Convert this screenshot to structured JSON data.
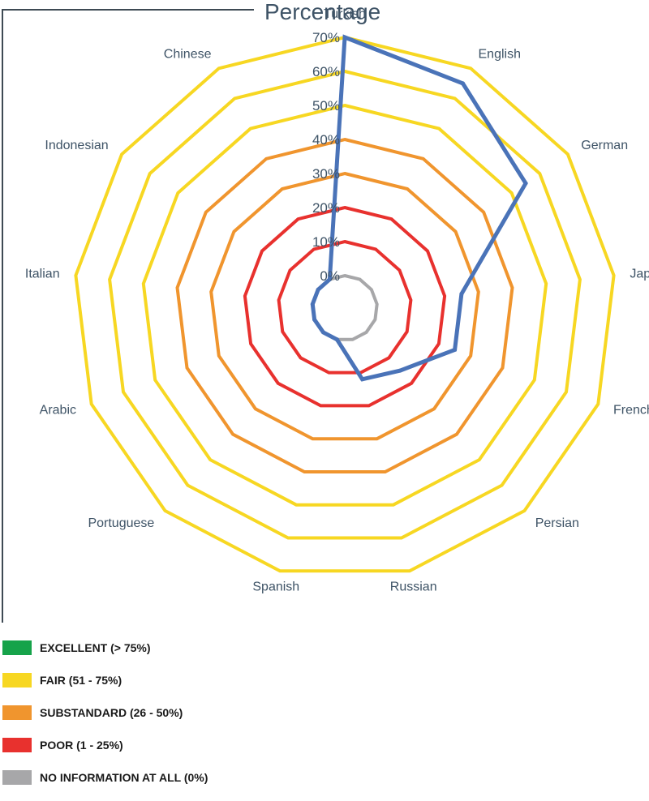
{
  "chart_data": {
    "type": "radar",
    "title": "Percentage",
    "categories": [
      "Turkish",
      "English",
      "German",
      "Japanese",
      "French",
      "Persian",
      "Russian",
      "Spanish",
      "Portuguese",
      "Arabic",
      "Italian",
      "Indonesian",
      "Chinese"
    ],
    "ticks": [
      "0%",
      "10%",
      "20%",
      "30%",
      "40%",
      "50%",
      "60%",
      "70%"
    ],
    "rlim": [
      0,
      70
    ],
    "values": [
      70,
      65,
      55,
      25,
      25,
      15,
      12,
      0,
      0,
      0,
      0,
      0,
      0
    ],
    "series_color": "#4a73b8",
    "grid_colors": [
      "#a7a7a9",
      "#e8312e",
      "#e8312e",
      "#f0952e",
      "#f0952e",
      "#f7d722",
      "#f7d722",
      "#f7d722"
    ]
  },
  "legend": [
    {
      "label": "EXCELLENT (> 75%)",
      "color": "#16a34a"
    },
    {
      "label": "FAIR (51 - 75%)",
      "color": "#f7d722"
    },
    {
      "label": "SUBSTANDARD (26 - 50%)",
      "color": "#f0952e"
    },
    {
      "label": "POOR (1 - 25%)",
      "color": "#e8312e"
    },
    {
      "label": "NO INFORMATION AT ALL (0%)",
      "color": "#a7a7a9"
    }
  ]
}
